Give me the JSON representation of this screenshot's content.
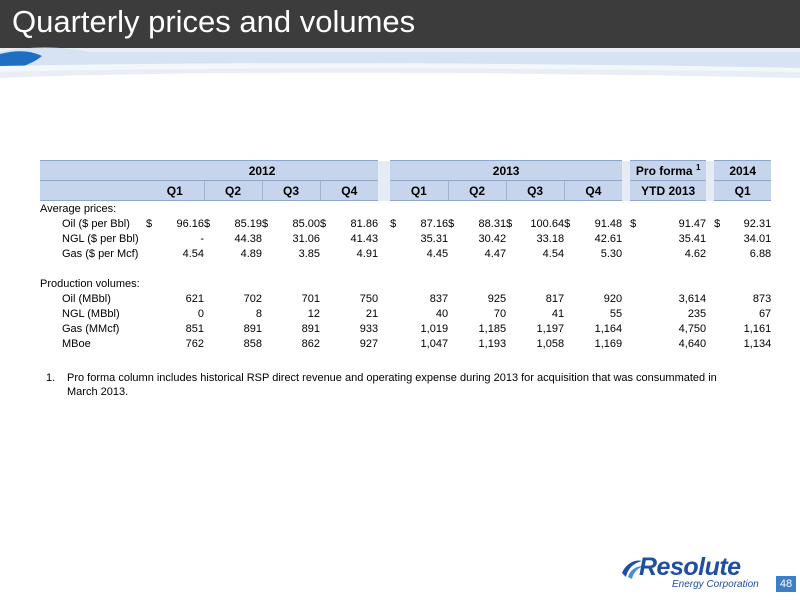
{
  "slide": {
    "title": "Quarterly prices and volumes",
    "page_number": "48"
  },
  "table": {
    "group_headers": {
      "y2012": "2012",
      "y2013": "2013",
      "pro_forma": "Pro forma",
      "pro_forma_sup": "1",
      "y2014": "2014"
    },
    "column_headers": [
      "Q1",
      "Q2",
      "Q3",
      "Q4",
      "Q1",
      "Q2",
      "Q3",
      "Q4",
      "YTD 2013",
      "Q1"
    ],
    "sections": [
      {
        "title": "Average prices:",
        "rows": [
          {
            "label": "Oil ($ per Bbl)",
            "cur": [
              "$",
              "$",
              "$",
              "$",
              "$",
              "$",
              "$",
              "$",
              "$",
              "$"
            ],
            "values": [
              "96.16",
              "85.19",
              "85.00",
              "81.86",
              "87.16",
              "88.31",
              "100.64",
              "91.48",
              "91.47",
              "92.31"
            ]
          },
          {
            "label": "NGL ($ per Bbl)",
            "cur": [
              "",
              "",
              "",
              "",
              "",
              "",
              "",
              "",
              "",
              ""
            ],
            "values": [
              "-",
              "44.38",
              "31.06",
              "41.43",
              "35.31",
              "30.42",
              "33.18",
              "42.61",
              "35.41",
              "34.01"
            ]
          },
          {
            "label": "Gas ($ per Mcf)",
            "cur": [
              "",
              "",
              "",
              "",
              "",
              "",
              "",
              "",
              "",
              ""
            ],
            "values": [
              "4.54",
              "4.89",
              "3.85",
              "4.91",
              "4.45",
              "4.47",
              "4.54",
              "5.30",
              "4.62",
              "6.88"
            ]
          }
        ]
      },
      {
        "title": "Production volumes:",
        "rows": [
          {
            "label": "Oil (MBbl)",
            "cur": [
              "",
              "",
              "",
              "",
              "",
              "",
              "",
              "",
              "",
              ""
            ],
            "values": [
              "621",
              "702",
              "701",
              "750",
              "837",
              "925",
              "817",
              "920",
              "3,614",
              "873"
            ]
          },
          {
            "label": "NGL (MBbl)",
            "cur": [
              "",
              "",
              "",
              "",
              "",
              "",
              "",
              "",
              "",
              ""
            ],
            "values": [
              "0",
              "8",
              "12",
              "21",
              "40",
              "70",
              "41",
              "55",
              "235",
              "67"
            ]
          },
          {
            "label": "Gas (MMcf)",
            "cur": [
              "",
              "",
              "",
              "",
              "",
              "",
              "",
              "",
              "",
              ""
            ],
            "values": [
              "851",
              "891",
              "891",
              "933",
              "1,019",
              "1,185",
              "1,197",
              "1,164",
              "4,750",
              "1,161"
            ]
          },
          {
            "label": "MBoe",
            "cur": [
              "",
              "",
              "",
              "",
              "",
              "",
              "",
              "",
              "",
              ""
            ],
            "values": [
              "762",
              "858",
              "862",
              "927",
              "1,047",
              "1,193",
              "1,058",
              "1,169",
              "4,640",
              "1,134"
            ]
          }
        ]
      }
    ]
  },
  "footnote": {
    "number": "1.",
    "text": "Pro forma column includes historical RSP direct revenue and operating expense during 2013 for acquisition that was consummated in March 2013."
  },
  "logo": {
    "word": "Resolute",
    "sub": "Energy Corporation"
  },
  "colors": {
    "title_bar": "#3c3c3c",
    "header_fill": "#c6d5ec",
    "accent_blue": "#3c7fc4",
    "logo_blue": "#1f4fa0"
  }
}
